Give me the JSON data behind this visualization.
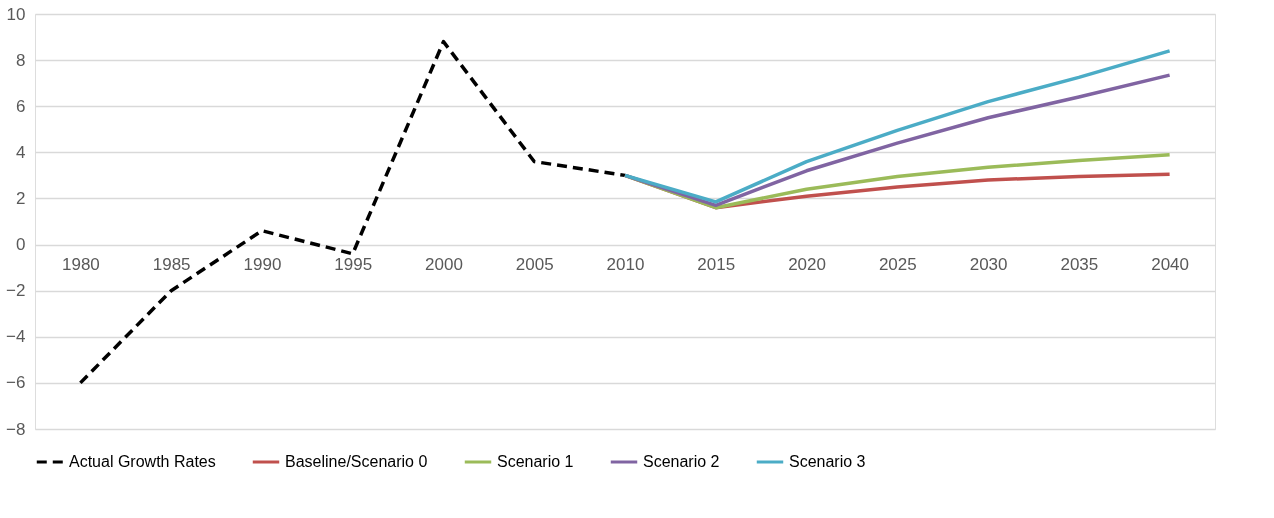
{
  "chart_data": {
    "type": "line",
    "categories": [
      "1980",
      "1985",
      "1990",
      "1995",
      "2000",
      "2005",
      "2010",
      "2015",
      "2020",
      "2025",
      "2030",
      "2035",
      "2040"
    ],
    "series": [
      {
        "name": "Actual Growth Rates",
        "color": "#000000",
        "line_style": "dashed",
        "values": [
          -6.0,
          -2.0,
          0.6,
          -0.4,
          8.8,
          3.6,
          3.0,
          null,
          null,
          null,
          null,
          null,
          null
        ]
      },
      {
        "name": "Baseline/Scenario 0",
        "color": "#c0504d",
        "line_style": "solid",
        "values": [
          null,
          null,
          null,
          null,
          null,
          null,
          3.0,
          1.6,
          2.1,
          2.5,
          2.8,
          2.95,
          3.05
        ]
      },
      {
        "name": "Scenario 1",
        "color": "#9bbb59",
        "line_style": "solid",
        "values": [
          null,
          null,
          null,
          null,
          null,
          null,
          3.0,
          1.6,
          2.4,
          2.95,
          3.35,
          3.65,
          3.9
        ]
      },
      {
        "name": "Scenario 2",
        "color": "#8064a2",
        "line_style": "solid",
        "values": [
          null,
          null,
          null,
          null,
          null,
          null,
          3.0,
          1.7,
          3.2,
          4.4,
          5.5,
          6.4,
          7.35
        ]
      },
      {
        "name": "Scenario 3",
        "color": "#4bacc6",
        "line_style": "solid",
        "values": [
          null,
          null,
          null,
          null,
          null,
          null,
          3.0,
          1.85,
          3.6,
          4.95,
          6.2,
          7.25,
          8.4
        ]
      }
    ],
    "ylim": [
      -8,
      10
    ],
    "yticks": [
      -8,
      -6,
      -4,
      -2,
      0,
      2,
      4,
      6,
      8,
      10
    ],
    "grid": "y",
    "legend": "bottom",
    "marker": "none"
  }
}
